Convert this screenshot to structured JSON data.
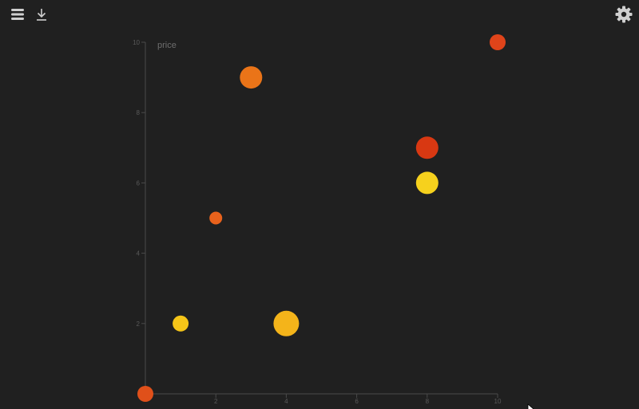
{
  "toolbar": {
    "menu_icon": "hamburger-menu-icon",
    "download_icon": "download-icon",
    "settings_icon": "gear-icon"
  },
  "chart_data": {
    "type": "scatter",
    "title": "",
    "xlabel": "",
    "ylabel": "price",
    "xlim": [
      0,
      10
    ],
    "ylim": [
      0,
      10
    ],
    "xticks": [
      "",
      "2",
      "4",
      "6",
      "8",
      "10"
    ],
    "yticks": [
      "",
      "2",
      "4",
      "6",
      "8",
      "10"
    ],
    "grid": false,
    "points": [
      {
        "x": 0,
        "y": 0,
        "size": 3,
        "color": "#e0501a"
      },
      {
        "x": 1,
        "y": 2,
        "size": 3,
        "color": "#f5c518"
      },
      {
        "x": 2,
        "y": 5,
        "size": 2,
        "color": "#e8621c"
      },
      {
        "x": 3,
        "y": 9,
        "size": 5,
        "color": "#ea7418"
      },
      {
        "x": 4,
        "y": 2,
        "size": 6,
        "color": "#f4b41a"
      },
      {
        "x": 8,
        "y": 7,
        "size": 5,
        "color": "#d83812"
      },
      {
        "x": 8,
        "y": 6,
        "size": 5,
        "color": "#f6d11d"
      },
      {
        "x": 10,
        "y": 10,
        "size": 3,
        "color": "#e0441a"
      }
    ]
  }
}
